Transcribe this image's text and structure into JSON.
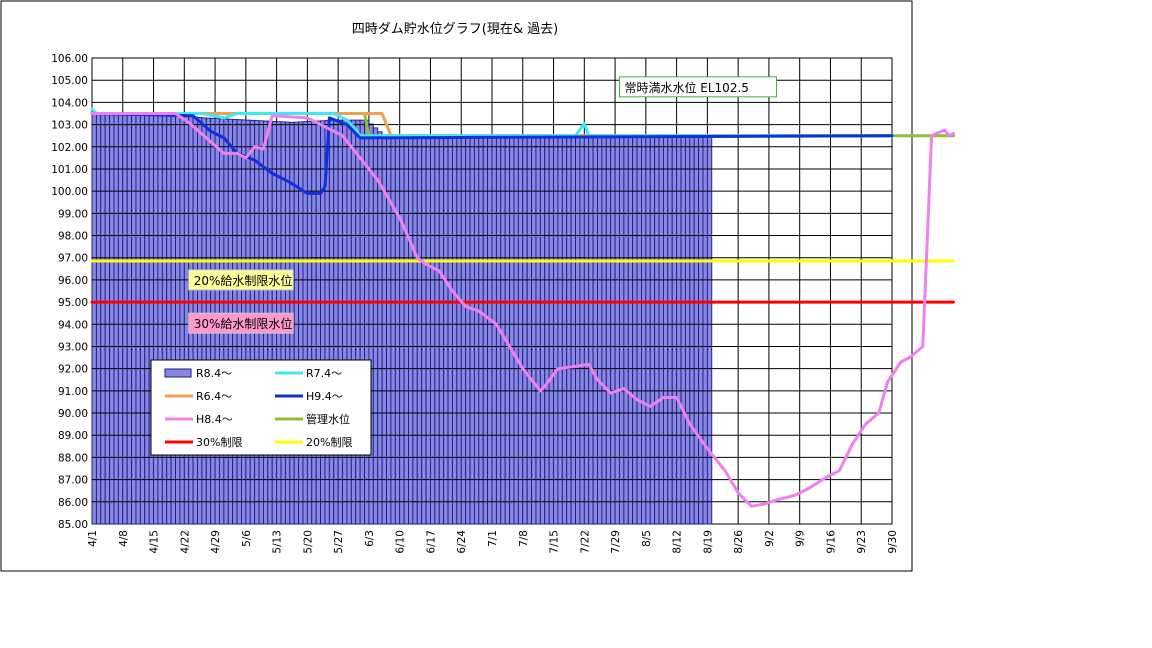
{
  "chart_data": {
    "type": "bar+line",
    "title": "四時ダム貯水位グラフ(現在& 過去)",
    "ylim": [
      85.0,
      106.0
    ],
    "yticks": [
      "85.00",
      "86.00",
      "87.00",
      "88.00",
      "89.00",
      "90.00",
      "91.00",
      "92.00",
      "93.00",
      "94.00",
      "95.00",
      "96.00",
      "97.00",
      "98.00",
      "99.00",
      "100.00",
      "101.00",
      "102.00",
      "103.00",
      "104.00",
      "105.00",
      "106.00"
    ],
    "xlabels": [
      "4/1",
      "4/8",
      "4/15",
      "4/22",
      "4/29",
      "5/6",
      "5/13",
      "5/20",
      "5/27",
      "6/3",
      "6/10",
      "6/17",
      "6/24",
      "7/1",
      "7/8",
      "7/15",
      "7/22",
      "7/29",
      "8/5",
      "8/12",
      "8/19",
      "8/26",
      "9/2",
      "9/9",
      "9/16",
      "9/23",
      "9/30"
    ],
    "grid": true,
    "legend_placement": "lower-left inside plot",
    "annotations": [
      {
        "label": "常時満水水位 EL102.5",
        "day": 120,
        "value": 104.7,
        "bg": "#ffffff",
        "border": "#3db33d"
      },
      {
        "label": "20%給水制限水位",
        "day": 22,
        "value": 96.0,
        "bg": "#ffff99",
        "border": "#c8c8c8"
      },
      {
        "label": "30%給水制限水位",
        "day": 22,
        "value": 94.05,
        "bg": "#ff99cc",
        "border": "#c8c8c8"
      }
    ],
    "series": [
      {
        "name": "R8.4〜",
        "kind": "bar",
        "color": "#8888e0",
        "edge": "#1a1a8a",
        "points": [
          [
            0,
            103.5
          ],
          [
            5,
            103.5
          ],
          [
            15,
            103.5
          ],
          [
            25,
            103.3
          ],
          [
            35,
            103.2
          ],
          [
            45,
            103.1
          ],
          [
            55,
            103.2
          ],
          [
            62,
            103.2
          ],
          [
            66,
            102.5
          ],
          [
            70,
            102.5
          ],
          [
            140,
            102.5
          ]
        ]
      },
      {
        "name": "R7.4〜",
        "kind": "line",
        "color": "#40e8f0",
        "points": [
          [
            0,
            103.7
          ],
          [
            1,
            103.5
          ],
          [
            25,
            103.5
          ],
          [
            30,
            103.3
          ],
          [
            33,
            103.5
          ],
          [
            55,
            103.5
          ],
          [
            58,
            103.2
          ],
          [
            60,
            102.8
          ],
          [
            61,
            102.5
          ],
          [
            110,
            102.5
          ],
          [
            112,
            103.05
          ],
          [
            113,
            102.5
          ],
          [
            182,
            102.5
          ]
        ]
      },
      {
        "name": "R6.4〜",
        "kind": "line",
        "color": "#f0a050",
        "points": [
          [
            0,
            103.5
          ],
          [
            66,
            103.5
          ],
          [
            68,
            102.5
          ],
          [
            182,
            102.5
          ]
        ]
      },
      {
        "name": "H9.4〜",
        "kind": "line",
        "color": "#1030e0",
        "points": [
          [
            0,
            103.5
          ],
          [
            23,
            103.4
          ],
          [
            27,
            102.7
          ],
          [
            30,
            102.4
          ],
          [
            33,
            101.7
          ],
          [
            37,
            101.4
          ],
          [
            41,
            100.8
          ],
          [
            45,
            100.4
          ],
          [
            49,
            99.9
          ],
          [
            52,
            99.9
          ],
          [
            53,
            100.2
          ],
          [
            54,
            103.3
          ],
          [
            58,
            103.0
          ],
          [
            61,
            102.4
          ],
          [
            182,
            102.5
          ]
        ]
      },
      {
        "name": "H8.4〜",
        "kind": "line",
        "color": "#f080f0",
        "points": [
          [
            0,
            103.5
          ],
          [
            19,
            103.5
          ],
          [
            22,
            103.1
          ],
          [
            26,
            102.4
          ],
          [
            30,
            101.7
          ],
          [
            33,
            101.7
          ],
          [
            35,
            101.5
          ],
          [
            37,
            102.0
          ],
          [
            39,
            101.9
          ],
          [
            41,
            103.4
          ],
          [
            49,
            103.3
          ],
          [
            53,
            102.9
          ],
          [
            57,
            102.5
          ],
          [
            61,
            101.5
          ],
          [
            65,
            100.5
          ],
          [
            70,
            98.8
          ],
          [
            74,
            97.0
          ],
          [
            76,
            96.7
          ],
          [
            79,
            96.4
          ],
          [
            82,
            95.5
          ],
          [
            85,
            94.8
          ],
          [
            88,
            94.6
          ],
          [
            92,
            94.0
          ],
          [
            95,
            93.0
          ],
          [
            98,
            92.0
          ],
          [
            100,
            91.5
          ],
          [
            102,
            91.0
          ],
          [
            103,
            91.2
          ],
          [
            106,
            92.0
          ],
          [
            110,
            92.1
          ],
          [
            113,
            92.2
          ],
          [
            115,
            91.5
          ],
          [
            118,
            90.9
          ],
          [
            121,
            91.1
          ],
          [
            124,
            90.6
          ],
          [
            127,
            90.3
          ],
          [
            130,
            90.7
          ],
          [
            133,
            90.7
          ],
          [
            136,
            89.5
          ],
          [
            140,
            88.4
          ],
          [
            144,
            87.4
          ],
          [
            147,
            86.4
          ],
          [
            150,
            85.8
          ],
          [
            153,
            85.9
          ],
          [
            156,
            86.1
          ],
          [
            160,
            86.3
          ],
          [
            163,
            86.6
          ],
          [
            167,
            87.1
          ],
          [
            170,
            87.4
          ],
          [
            173,
            88.6
          ],
          [
            176,
            89.5
          ],
          [
            179,
            90.0
          ],
          [
            181,
            91.4
          ],
          [
            184,
            92.3
          ],
          [
            186,
            92.5
          ],
          [
            189,
            93.0
          ],
          [
            191,
            102.5
          ],
          [
            192,
            102.6
          ],
          [
            194,
            102.75
          ],
          [
            195,
            102.5
          ],
          [
            196,
            102.6
          ]
        ]
      },
      {
        "name": "管理水位",
        "kind": "line",
        "color": "#90c030",
        "points": [
          [
            0,
            103.5
          ],
          [
            62,
            103.5
          ],
          [
            63,
            102.5
          ],
          [
            196,
            102.5
          ]
        ]
      },
      {
        "name": "30%制限",
        "kind": "line",
        "color": "#ff0000",
        "points": [
          [
            0,
            95.0
          ],
          [
            196,
            95.0
          ]
        ]
      },
      {
        "name": "20%制限",
        "kind": "line",
        "color": "#ffff00",
        "points": [
          [
            0,
            96.85
          ],
          [
            196,
            96.85
          ]
        ]
      }
    ]
  }
}
